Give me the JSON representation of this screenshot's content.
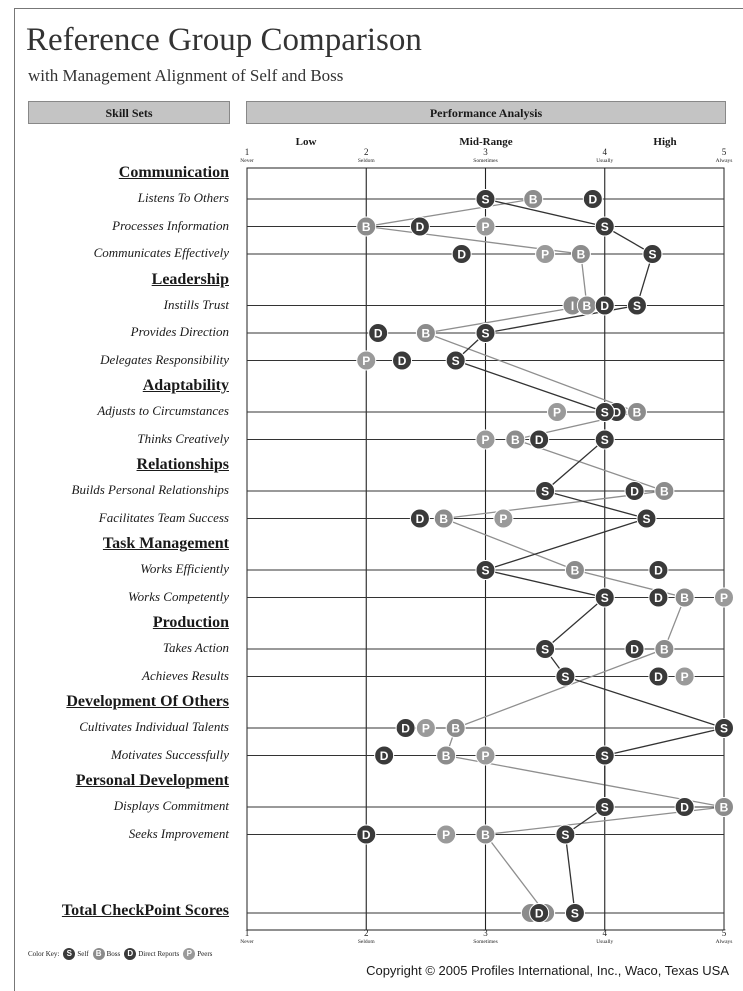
{
  "header": {
    "title": "Reference Group Comparison",
    "subtitle": "with Management Alignment of Self and Boss",
    "skill_sets": "Skill Sets",
    "performance_analysis": "Performance Analysis",
    "bands": {
      "low": "Low",
      "mid": "Mid-Range",
      "high": "High"
    }
  },
  "chart_data": {
    "type": "scatter",
    "xlim": [
      1,
      5
    ],
    "scale": [
      {
        "value": 1,
        "label": "Never"
      },
      {
        "value": 2,
        "label": "Seldom"
      },
      {
        "value": 3,
        "label": "Sometimes"
      },
      {
        "value": 4,
        "label": "Usually"
      },
      {
        "value": 5,
        "label": "Always"
      }
    ],
    "series_key": {
      "S": {
        "name": "Self",
        "color": "#3a3a3a"
      },
      "B": {
        "name": "Boss",
        "color": "#8c8c8c"
      },
      "D": {
        "name": "Direct Reports",
        "color": "#3a3a3a"
      },
      "P": {
        "name": "Peers",
        "color": "#9a9a9a"
      }
    },
    "line_colors": {
      "S": "#333333",
      "B": "#8f8f8f"
    },
    "categories": [
      {
        "name": "Communication",
        "skills": [
          {
            "name": "Listens To Others",
            "S": 3.0,
            "B": 3.4,
            "D": 3.9
          },
          {
            "name": "Processes Information",
            "S": 4.0,
            "B": 2.0,
            "D": 2.45,
            "P": 3.0
          },
          {
            "name": "Communicates Effectively",
            "S": 4.4,
            "B": 3.8,
            "D": 2.8,
            "P": 3.5
          }
        ]
      },
      {
        "name": "Leadership",
        "skills": [
          {
            "name": "Instills Trust",
            "S": 4.27,
            "B": 3.85,
            "D": 4.0,
            "I": 3.73
          },
          {
            "name": "Provides Direction",
            "S": 3.0,
            "B": 2.5,
            "D": 2.1
          },
          {
            "name": "Delegates Responsibility",
            "S": 2.75,
            "D": 2.3,
            "P": 2.0
          }
        ]
      },
      {
        "name": "Adaptability",
        "skills": [
          {
            "name": "Adjusts to Circumstances",
            "S": 4.0,
            "B": 4.27,
            "D": 4.1,
            "P": 3.6
          },
          {
            "name": "Thinks Creatively",
            "S": 4.0,
            "B": 3.25,
            "D": 3.45,
            "P": 3.0
          }
        ]
      },
      {
        "name": "Relationships",
        "skills": [
          {
            "name": "Builds Personal Relationships",
            "S": 3.5,
            "B": 4.5,
            "D": 4.25
          },
          {
            "name": "Facilitates Team Success",
            "S": 4.35,
            "B": 2.65,
            "D": 2.45,
            "P": 3.15
          }
        ]
      },
      {
        "name": "Task Management",
        "skills": [
          {
            "name": "Works Efficiently",
            "S": 3.0,
            "B": 3.75,
            "D": 4.45
          },
          {
            "name": "Works Competently",
            "S": 4.0,
            "B": 4.67,
            "D": 4.45,
            "P": 5.0
          }
        ]
      },
      {
        "name": "Production",
        "skills": [
          {
            "name": "Takes Action",
            "S": 3.5,
            "B": 4.5,
            "D": 4.25
          },
          {
            "name": "Achieves Results",
            "S": 3.67,
            "D": 4.45,
            "P": 4.67
          }
        ]
      },
      {
        "name": "Development Of Others",
        "skills": [
          {
            "name": "Cultivates Individual Talents",
            "S": 5.0,
            "B": 2.75,
            "D": 2.33,
            "P": 2.5
          },
          {
            "name": "Motivates Successfully",
            "S": 4.0,
            "B": 2.67,
            "D": 2.15,
            "P": 3.0
          }
        ]
      },
      {
        "name": "Personal Development",
        "skills": [
          {
            "name": "Displays Commitment",
            "S": 4.0,
            "B": 5.0,
            "D": 4.67
          },
          {
            "name": "Seeks Improvement",
            "S": 3.67,
            "B": 3.0,
            "D": 2.0,
            "P": 2.67
          }
        ]
      }
    ],
    "total": {
      "name": "Total CheckPoint Scores",
      "S": 3.75,
      "B": 3.5,
      "D": 3.45,
      "I": 3.38
    }
  },
  "footer": {
    "color_key_label": "Color Key:",
    "key": [
      {
        "letter": "S",
        "name": "Self",
        "color": "#3a3a3a"
      },
      {
        "letter": "B",
        "name": "Boss",
        "color": "#8c8c8c"
      },
      {
        "letter": "D",
        "name": "Direct Reports",
        "color": "#3a3a3a"
      },
      {
        "letter": "P",
        "name": "Peers",
        "color": "#9a9a9a"
      }
    ],
    "copyright": "Copyright © 2005 Profiles International, Inc., Waco, Texas USA"
  }
}
